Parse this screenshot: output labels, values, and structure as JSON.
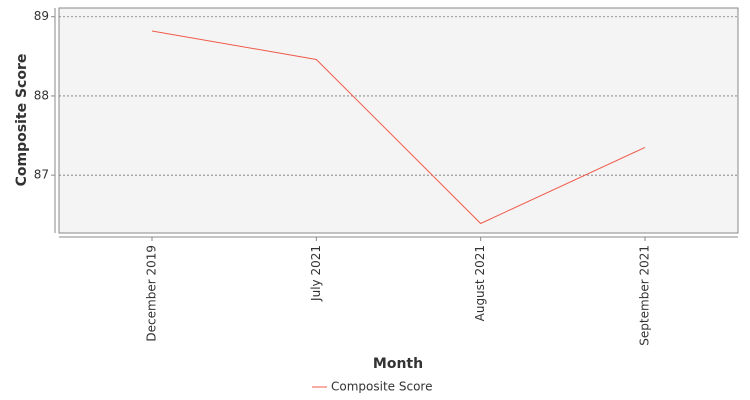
{
  "chart_data": {
    "type": "line",
    "x_label": "Month",
    "y_label": "Composite Score",
    "categories": [
      "December 2019",
      "July 2021",
      "August 2021",
      "September 2021"
    ],
    "series": [
      {
        "name": "Composite Score",
        "color": "#f05a4a",
        "values": [
          88.82,
          88.46,
          86.39,
          87.35
        ]
      }
    ],
    "ylim": [
      86.27,
      89.11
    ],
    "yticks": [
      87,
      88,
      89
    ],
    "grid": true,
    "legend": "bottom"
  }
}
